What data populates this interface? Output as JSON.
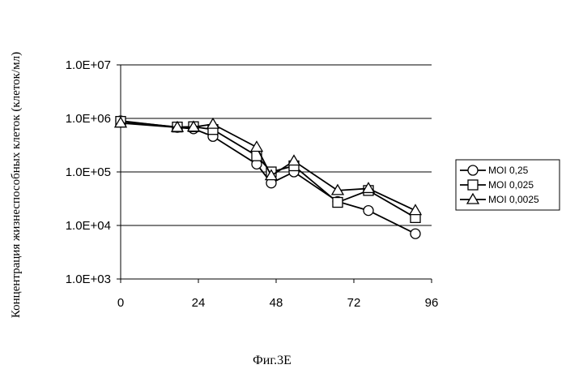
{
  "chart_data": {
    "type": "line",
    "ylabel": "Концентрация жизнеспособных клеток (клеток/мл)",
    "caption": "Фиг.3E",
    "y_scale": "log",
    "ylim": [
      1000,
      10000000
    ],
    "yticks": [
      1000,
      10000,
      100000,
      1000000,
      10000000
    ],
    "ytick_labels": [
      "1.0E+03",
      "1.0E+04",
      "1.0E+05",
      "1.0E+06",
      "1.0E+07"
    ],
    "xlim": [
      0,
      96
    ],
    "xticks": [
      0,
      24,
      48,
      72,
      96
    ],
    "xtick_labels": [
      "0",
      "24",
      "48",
      "72",
      "96"
    ],
    "grid": "horizontal",
    "legend_position": "right",
    "series": [
      {
        "name": "MOI 0,25",
        "marker": "circle",
        "x": [
          0,
          17.5,
          22.5,
          28.5,
          42,
          46.5,
          53.5,
          67,
          76.5,
          91
        ],
        "y": [
          900000,
          680000,
          640000,
          460000,
          140000,
          62000,
          100000,
          28000,
          19000,
          7000
        ]
      },
      {
        "name": "MOI 0,025",
        "marker": "square",
        "x": [
          0,
          17.5,
          22.5,
          28.5,
          42,
          46.5,
          53.5,
          67,
          76.5,
          91
        ],
        "y": [
          880000,
          690000,
          700000,
          620000,
          200000,
          100000,
          130000,
          27000,
          45000,
          14000
        ]
      },
      {
        "name": "MOI 0,0025",
        "marker": "triangle",
        "x": [
          0,
          17.5,
          22.5,
          28.5,
          42,
          46.5,
          53.5,
          67,
          76.5,
          91
        ],
        "y": [
          820000,
          680000,
          690000,
          780000,
          290000,
          85000,
          160000,
          45000,
          49000,
          19000
        ]
      }
    ]
  }
}
